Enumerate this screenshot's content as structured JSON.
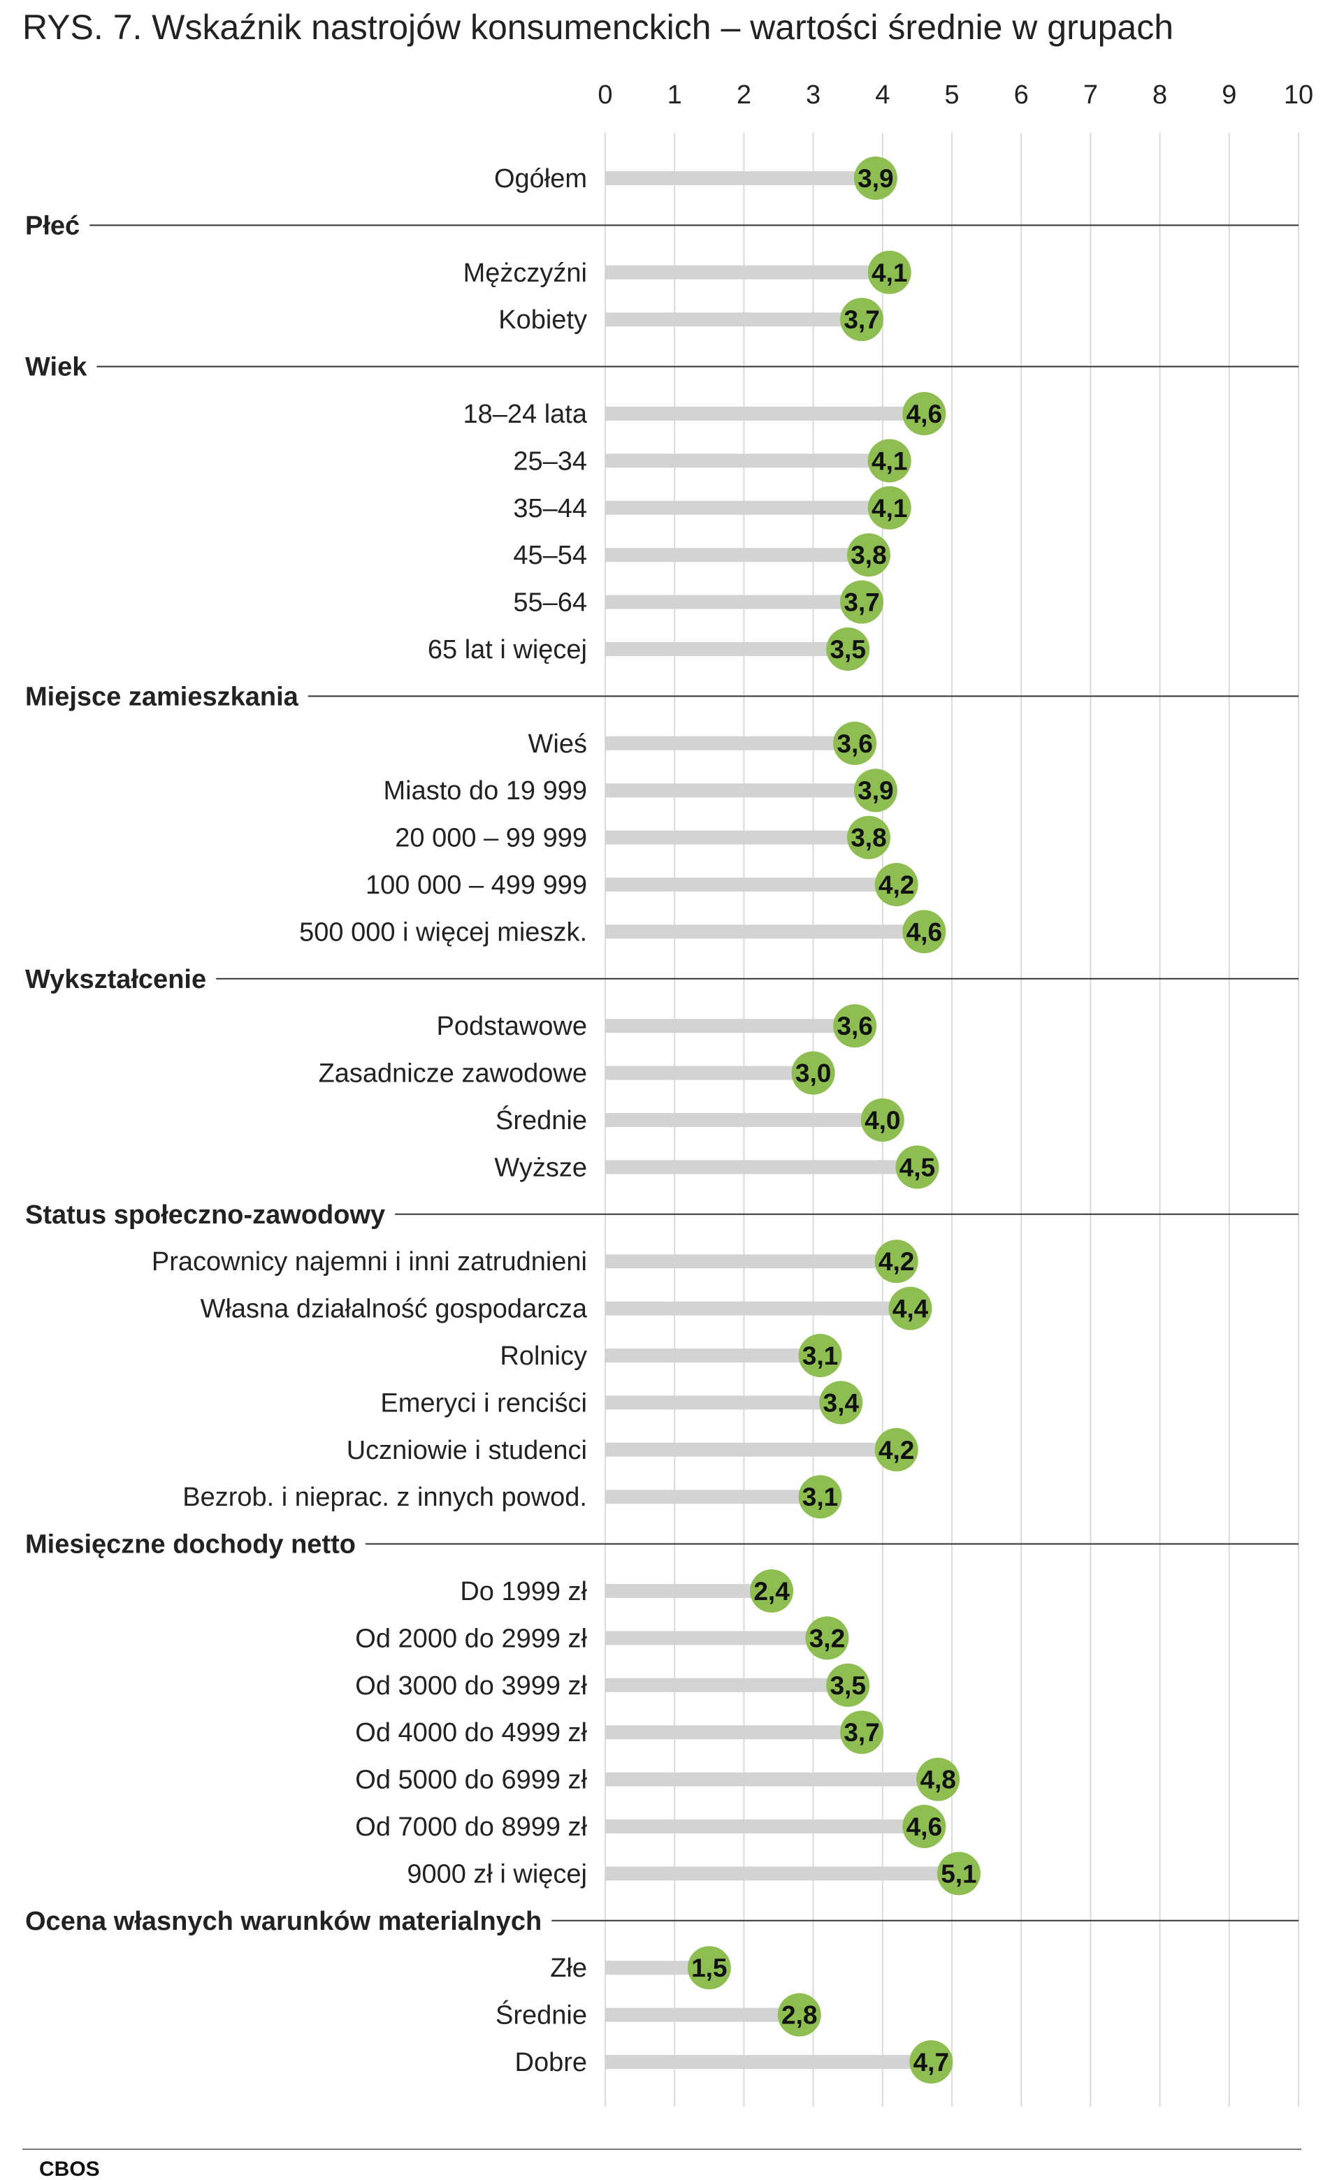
{
  "chart_data": {
    "type": "lollipop-bar",
    "title": "RYS. 7. Wskaźnik nastrojów konsumenckich – wartości średnie w grupach",
    "xlim": [
      0,
      10
    ],
    "xticks": [
      "0",
      "1",
      "2",
      "3",
      "4",
      "5",
      "6",
      "7",
      "8",
      "9",
      "10"
    ],
    "grid": true,
    "colors": {
      "bar": "#d3d3d3",
      "marker": "#8ebe51",
      "grid": "#dadada",
      "separator": "#333333"
    },
    "total": {
      "label": "Ogółem",
      "value": 3.9,
      "display": "3,9"
    },
    "groups": [
      {
        "name": "Płeć",
        "items": [
          {
            "label": "Mężczyźni",
            "value": 4.1,
            "display": "4,1"
          },
          {
            "label": "Kobiety",
            "value": 3.7,
            "display": "3,7"
          }
        ]
      },
      {
        "name": "Wiek",
        "items": [
          {
            "label": "18–24 lata",
            "value": 4.6,
            "display": "4,6"
          },
          {
            "label": "25–34",
            "value": 4.1,
            "display": "4,1"
          },
          {
            "label": "35–44",
            "value": 4.1,
            "display": "4,1"
          },
          {
            "label": "45–54",
            "value": 3.8,
            "display": "3,8"
          },
          {
            "label": "55–64",
            "value": 3.7,
            "display": "3,7"
          },
          {
            "label": "65 lat i więcej",
            "value": 3.5,
            "display": "3,5"
          }
        ]
      },
      {
        "name": "Miejsce zamieszkania",
        "items": [
          {
            "label": "Wieś",
            "value": 3.6,
            "display": "3,6"
          },
          {
            "label": "Miasto do 19 999",
            "value": 3.9,
            "display": "3,9"
          },
          {
            "label": "20 000 – 99 999",
            "value": 3.8,
            "display": "3,8"
          },
          {
            "label": "100 000 – 499 999",
            "value": 4.2,
            "display": "4,2"
          },
          {
            "label": "500 000 i więcej mieszk.",
            "value": 4.6,
            "display": "4,6"
          }
        ]
      },
      {
        "name": "Wykształcenie",
        "items": [
          {
            "label": "Podstawowe",
            "value": 3.6,
            "display": "3,6"
          },
          {
            "label": "Zasadnicze zawodowe",
            "value": 3.0,
            "display": "3,0"
          },
          {
            "label": "Średnie",
            "value": 4.0,
            "display": "4,0"
          },
          {
            "label": "Wyższe",
            "value": 4.5,
            "display": "4,5"
          }
        ]
      },
      {
        "name": "Status społeczno-zawodowy",
        "items": [
          {
            "label": "Pracownicy najemni i inni zatrudnieni",
            "value": 4.2,
            "display": "4,2"
          },
          {
            "label": "Własna działalność gospodarcza",
            "value": 4.4,
            "display": "4,4"
          },
          {
            "label": "Rolnicy",
            "value": 3.1,
            "display": "3,1"
          },
          {
            "label": "Emeryci i renciści",
            "value": 3.4,
            "display": "3,4"
          },
          {
            "label": "Uczniowie i studenci",
            "value": 4.2,
            "display": "4,2"
          },
          {
            "label": "Bezrob. i nieprac. z innych powod.",
            "value": 3.1,
            "display": "3,1"
          }
        ]
      },
      {
        "name": "Miesięczne dochody netto",
        "items": [
          {
            "label": "Do 1999 zł",
            "value": 2.4,
            "display": "2,4"
          },
          {
            "label": "Od 2000 do 2999 zł",
            "value": 3.2,
            "display": "3,2"
          },
          {
            "label": "Od 3000 do 3999 zł",
            "value": 3.5,
            "display": "3,5"
          },
          {
            "label": "Od 4000 do 4999 zł",
            "value": 3.7,
            "display": "3,7"
          },
          {
            "label": "Od 5000 do 6999 zł",
            "value": 4.8,
            "display": "4,8"
          },
          {
            "label": "Od 7000 do 8999 zł",
            "value": 4.6,
            "display": "4,6"
          },
          {
            "label": "9000 zł i więcej",
            "value": 5.1,
            "display": "5,1"
          }
        ]
      },
      {
        "name": "Ocena własnych warunków materialnych",
        "items": [
          {
            "label": "Złe",
            "value": 1.5,
            "display": "1,5"
          },
          {
            "label": "Średnie",
            "value": 2.8,
            "display": "2,8"
          },
          {
            "label": "Dobre",
            "value": 4.7,
            "display": "4,7"
          }
        ]
      }
    ],
    "source": "CBOS"
  }
}
